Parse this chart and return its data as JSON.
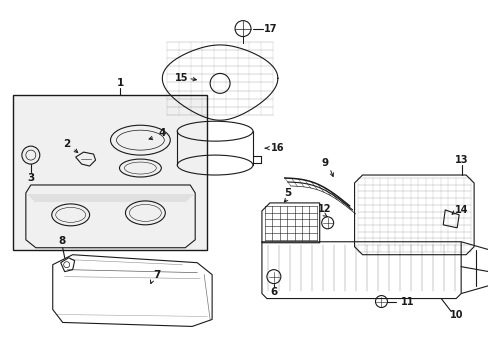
{
  "bg_color": "#ffffff",
  "line_color": "#1a1a1a",
  "lw": 0.8,
  "fs": 7.5,
  "figsize": [
    4.89,
    3.6
  ],
  "dpi": 100
}
